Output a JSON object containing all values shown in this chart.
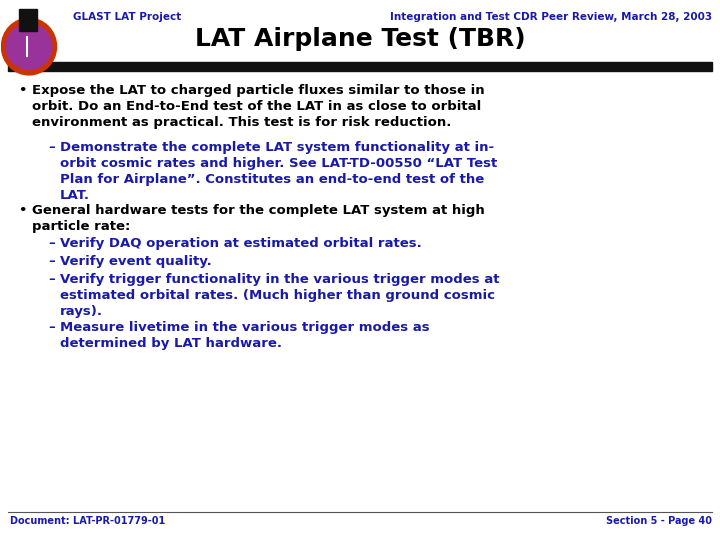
{
  "header_left": "GLAST LAT Project",
  "header_right": "Integration and Test CDR Peer Review, March 28, 2003",
  "title": "LAT Airplane Test (TBR)",
  "footer_left": "Document: LAT-PR-01779-01",
  "footer_right": "Section 5 - Page 40",
  "bg_color": "#ffffff",
  "header_blue": "#1a1aaa",
  "title_color": "#000000",
  "black_text": "#000000",
  "blue_text": "#1a1aaa",
  "body_fontsize": 9.5,
  "sub_fontsize": 9.5,
  "header_fontsize": 7.5,
  "title_fontsize": 18,
  "footer_fontsize": 7.0
}
